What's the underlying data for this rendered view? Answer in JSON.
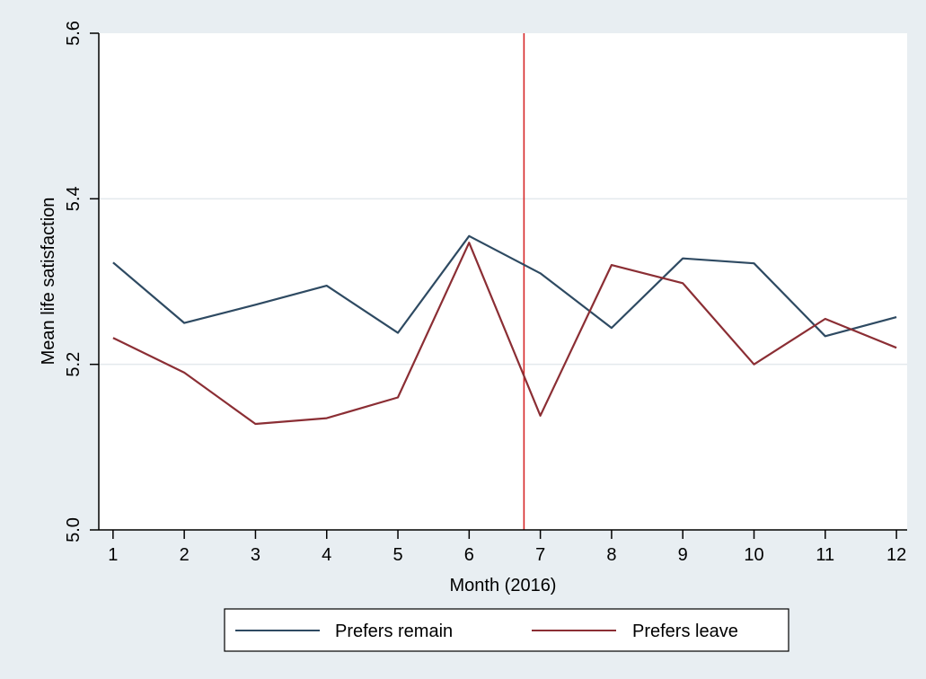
{
  "chart_data": {
    "type": "line",
    "title": "",
    "xlabel": "Month (2016)",
    "ylabel": "Mean life satisfaction",
    "x": [
      1,
      2,
      3,
      4,
      5,
      6,
      7,
      8,
      9,
      10,
      11,
      12
    ],
    "x_ticks": [
      "1",
      "2",
      "3",
      "4",
      "5",
      "6",
      "7",
      "8",
      "9",
      "10",
      "11",
      "12"
    ],
    "xlim": [
      0.8,
      12.15
    ],
    "ylim": [
      5.0,
      5.6
    ],
    "y_ticks": [
      {
        "value": 5.0,
        "label": "5.0"
      },
      {
        "value": 5.2,
        "label": "5.2"
      },
      {
        "value": 5.4,
        "label": "5.4"
      },
      {
        "value": 5.6,
        "label": "5.6"
      }
    ],
    "grid": "horizontal",
    "reference_line": {
      "x": 6.77,
      "color": "#d62728"
    },
    "series": [
      {
        "name": "Prefers remain",
        "color": "#2e4a62",
        "values": [
          5.323,
          5.25,
          5.272,
          5.295,
          5.238,
          5.355,
          5.31,
          5.244,
          5.328,
          5.322,
          5.234,
          5.257
        ]
      },
      {
        "name": "Prefers leave",
        "color": "#8b2e34",
        "values": [
          5.232,
          5.19,
          5.128,
          5.135,
          5.16,
          5.347,
          5.138,
          5.32,
          5.298,
          5.2,
          5.255,
          5.22
        ]
      }
    ],
    "legend_position": "bottom"
  },
  "colors": {
    "outer_background": "#e8eef2",
    "plot_background": "#ffffff",
    "gridline": "#e3e9ed"
  }
}
